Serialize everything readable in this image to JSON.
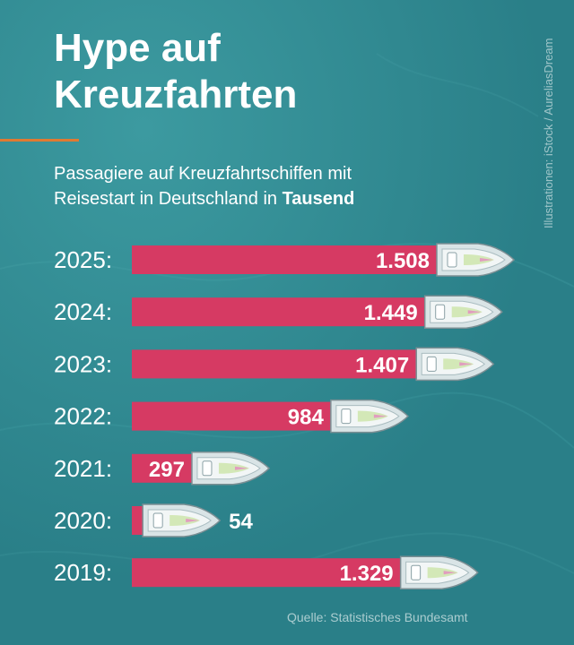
{
  "header": {
    "title_line1": "Hype auf",
    "title_line2": "Kreuzfahrten",
    "subtitle_line1": "Passagiere auf Kreuzfahrtschiffen mit",
    "subtitle_line2_prefix": "Reisestart in Deutschland in ",
    "subtitle_unit": "Tausend"
  },
  "credit": "Illustrationen: iStock / AureliasDream",
  "source": "Quelle: Statistisches Bundesamt",
  "colors": {
    "bar": "#d63a63",
    "background": "#2f8890",
    "accent": "#e07a32",
    "text": "#ffffff"
  },
  "chart_data": {
    "type": "bar",
    "orientation": "horizontal",
    "categories": [
      "2025",
      "2024",
      "2023",
      "2022",
      "2021",
      "2020",
      "2019"
    ],
    "category_labels": [
      "2025:",
      "2024:",
      "2023:",
      "2022:",
      "2021:",
      "2020:",
      "2019:"
    ],
    "values": [
      1508,
      1449,
      1407,
      984,
      297,
      54,
      1329
    ],
    "value_labels": [
      "1.508",
      "1.449",
      "1.407",
      "984",
      "297",
      "54",
      "1.329"
    ],
    "unit": "Tausend",
    "grid": false,
    "legend": "none"
  }
}
